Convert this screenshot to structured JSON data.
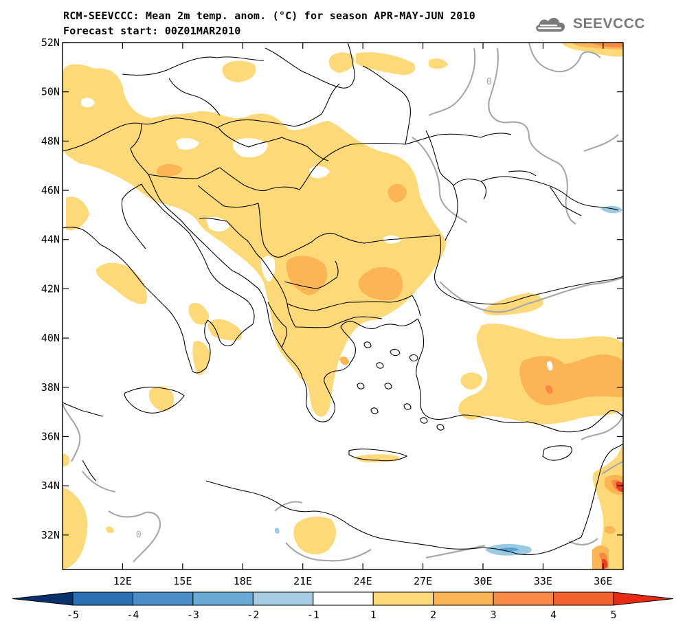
{
  "header": {
    "title_line1": "RCM-SEEVCCC: Mean 2m temp. anom. (°C) for season APR-MAY-JUN 2010",
    "title_line2": "Forecast start: 00Z01MAR2010"
  },
  "logo": {
    "text": "SEEVCCC",
    "icon": "cloud-icon"
  },
  "map": {
    "extent": {
      "lon_min": 9,
      "lon_max": 37,
      "lat_min": 30.6,
      "lat_max": 52
    },
    "lat_ticks": [
      {
        "value": 52,
        "label": "52N"
      },
      {
        "value": 50,
        "label": "50N"
      },
      {
        "value": 48,
        "label": "48N"
      },
      {
        "value": 46,
        "label": "46N"
      },
      {
        "value": 44,
        "label": "44N"
      },
      {
        "value": 42,
        "label": "42N"
      },
      {
        "value": 40,
        "label": "40N"
      },
      {
        "value": 38,
        "label": "38N"
      },
      {
        "value": 36,
        "label": "36N"
      },
      {
        "value": 34,
        "label": "34N"
      },
      {
        "value": 32,
        "label": "32N"
      }
    ],
    "lon_ticks": [
      {
        "value": 12,
        "label": "12E"
      },
      {
        "value": 15,
        "label": "15E"
      },
      {
        "value": 18,
        "label": "18E"
      },
      {
        "value": 21,
        "label": "21E"
      },
      {
        "value": 24,
        "label": "24E"
      },
      {
        "value": 27,
        "label": "27E"
      },
      {
        "value": 30,
        "label": "30E"
      },
      {
        "value": 33,
        "label": "33E"
      },
      {
        "value": 36,
        "label": "36E"
      }
    ],
    "contour_labels": [
      {
        "text": "0",
        "lon": 30.3,
        "lat": 50.3
      },
      {
        "text": "0",
        "lon": 12.8,
        "lat": 31.9
      }
    ],
    "colors": {
      "c_1_2": "#fdd97a",
      "c_2_3": "#fbb555",
      "c_3_4": "#f88a45",
      "c_4_5": "#ee3f22",
      "c_m1_m2": "#9cc9e2",
      "c_m2_m3": "#5aa1d4",
      "zero_contour": "#a9a9a9",
      "borders": "#000000"
    }
  },
  "colorbar": {
    "labels": [
      "-5",
      "-4",
      "-3",
      "-2",
      "-1",
      "1",
      "2",
      "3",
      "4",
      "5"
    ],
    "colors": [
      "#08306b",
      "#2a6fb3",
      "#4a8ec8",
      "#6aaad8",
      "#a6cce4",
      "#ffffff",
      "#fdd97a",
      "#fbb555",
      "#f88a45",
      "#f3612f",
      "#e62a14"
    ]
  }
}
